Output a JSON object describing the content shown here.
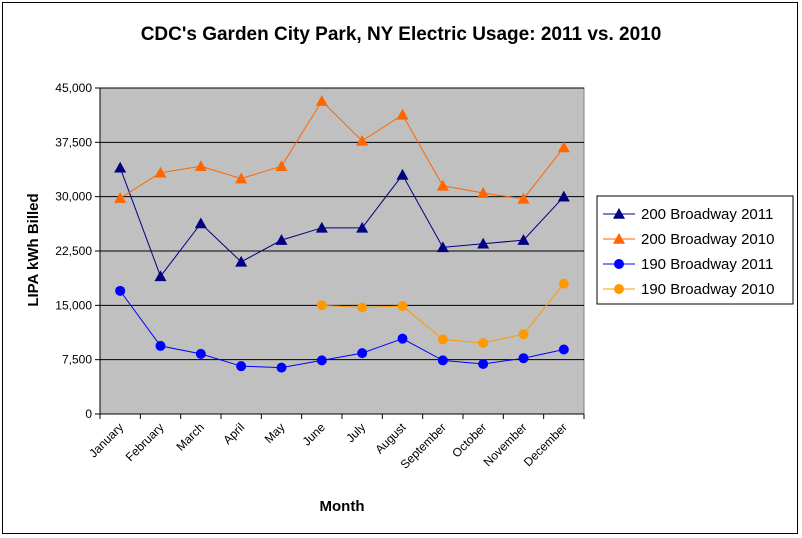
{
  "chart_data": {
    "type": "line",
    "title": "CDC's Garden City Park, NY Electric Usage: 2011 vs. 2010",
    "xlabel": "Month",
    "ylabel": "LIPA kWh Billed",
    "categories": [
      "January",
      "February",
      "March",
      "April",
      "May",
      "June",
      "July",
      "August",
      "September",
      "October",
      "November",
      "December"
    ],
    "ylim": [
      0,
      45000
    ],
    "yticks": [
      0,
      7500,
      15000,
      22500,
      30000,
      37500,
      45000
    ],
    "ytick_labels": [
      "0",
      "7,500",
      "15,000",
      "22,500",
      "30,000",
      "37,500",
      "45,000"
    ],
    "grid": true,
    "plot_background": "#c0c0c0",
    "legend_position": "right",
    "series": [
      {
        "name": "200 Broadway 2011",
        "marker": "triangle",
        "color": "#000080",
        "values": [
          34000,
          19000,
          26300,
          21000,
          24000,
          25700,
          25700,
          33000,
          23000,
          23500,
          24000,
          30000
        ]
      },
      {
        "name": "200 Broadway 2010",
        "marker": "triangle",
        "color": "#ff6600",
        "values": [
          29800,
          33300,
          34200,
          32500,
          34200,
          43200,
          37700,
          41300,
          31500,
          30500,
          29700,
          36800
        ]
      },
      {
        "name": "190 Broadway 2011",
        "marker": "circle",
        "color": "#0000ff",
        "values": [
          17000,
          9400,
          8300,
          6600,
          6400,
          7400,
          8400,
          10400,
          7400,
          6900,
          7700,
          8900
        ]
      },
      {
        "name": "190 Broadway 2010",
        "marker": "circle",
        "color": "#ff9900",
        "values": [
          null,
          null,
          null,
          null,
          null,
          15000,
          14700,
          14900,
          10300,
          9800,
          11000,
          18000
        ]
      }
    ]
  }
}
